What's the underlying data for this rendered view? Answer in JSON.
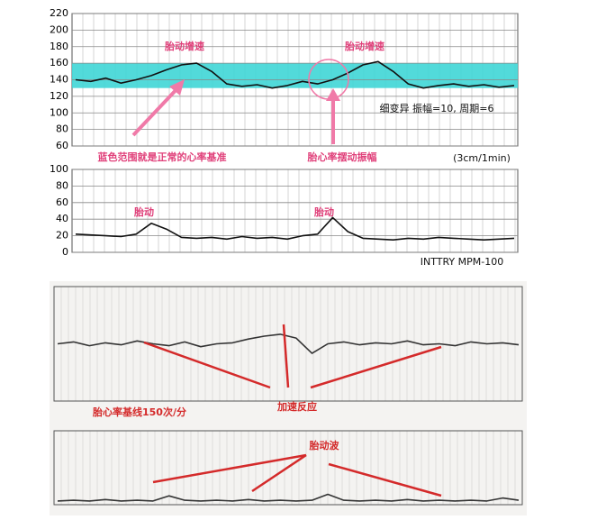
{
  "chart_data": [
    {
      "type": "line",
      "categories": [
        null,
        null,
        null,
        null,
        null,
        null,
        null,
        null,
        null,
        null,
        null,
        null,
        null,
        null,
        null,
        null,
        null,
        null,
        null,
        null,
        null,
        null,
        null,
        null,
        null,
        null,
        null,
        null,
        null,
        null
      ],
      "values": [
        140,
        138,
        142,
        136,
        140,
        145,
        152,
        158,
        160,
        150,
        135,
        132,
        134,
        130,
        133,
        138,
        135,
        140,
        148,
        158,
        162,
        150,
        135,
        130,
        133,
        135,
        132,
        134,
        131,
        133
      ],
      "color": "#111111",
      "ylim": [
        60,
        220
      ],
      "yticks": [
        60,
        80,
        100,
        120,
        140,
        160,
        180,
        200,
        220
      ],
      "grid": true,
      "band": [
        130,
        160
      ],
      "band_color": "#3fd6d6",
      "annotations": [
        "胎动增速",
        "胎动增速",
        "蓝色范围就是正常的心率基准",
        "胎心率摆动振幅",
        "细变异  振幅=10, 周期=6",
        "(3cm/1min)"
      ]
    },
    {
      "type": "line",
      "categories": [
        null,
        null,
        null,
        null,
        null,
        null,
        null,
        null,
        null,
        null,
        null,
        null,
        null,
        null,
        null,
        null,
        null,
        null,
        null,
        null,
        null,
        null,
        null,
        null,
        null,
        null,
        null,
        null,
        null,
        null
      ],
      "values": [
        22,
        21,
        20,
        19,
        22,
        35,
        28,
        18,
        17,
        18,
        16,
        19,
        17,
        18,
        16,
        20,
        22,
        42,
        25,
        17,
        16,
        15,
        17,
        16,
        18,
        17,
        16,
        15,
        16,
        17
      ],
      "color": "#111111",
      "ylim": [
        0,
        100
      ],
      "yticks": [
        0,
        20,
        40,
        60,
        80,
        100
      ],
      "grid": true,
      "annotations": [
        "胎动",
        "胎动",
        "INTTRY  MPM-100"
      ]
    },
    {
      "type": "line",
      "categories": [
        null,
        null,
        null,
        null,
        null,
        null,
        null,
        null,
        null,
        null,
        null,
        null,
        null,
        null,
        null,
        null,
        null,
        null,
        null,
        null,
        null,
        null,
        null,
        null,
        null,
        null,
        null,
        null,
        null,
        null
      ],
      "values": [
        150,
        152,
        148,
        151,
        149,
        153,
        150,
        148,
        152,
        147,
        150,
        151,
        155,
        158,
        160,
        156,
        140,
        150,
        152,
        149,
        151,
        150,
        153,
        149,
        150,
        148,
        152,
        150,
        151,
        149
      ],
      "color": "#333333",
      "ylim": [
        90,
        210
      ],
      "annotations": [
        "加速反应",
        "胎心率基线150次/分"
      ]
    },
    {
      "type": "line",
      "categories": [
        null,
        null,
        null,
        null,
        null,
        null,
        null,
        null,
        null,
        null,
        null,
        null,
        null,
        null,
        null,
        null,
        null,
        null,
        null,
        null,
        null,
        null,
        null,
        null,
        null,
        null,
        null,
        null,
        null,
        null
      ],
      "values": [
        5,
        6,
        5,
        7,
        5,
        6,
        5,
        12,
        6,
        5,
        6,
        5,
        7,
        5,
        6,
        5,
        6,
        14,
        6,
        5,
        6,
        5,
        7,
        5,
        6,
        5,
        6,
        5,
        9,
        6
      ],
      "color": "#333333",
      "ylim": [
        0,
        100
      ],
      "annotations": [
        "胎动波"
      ]
    }
  ]
}
